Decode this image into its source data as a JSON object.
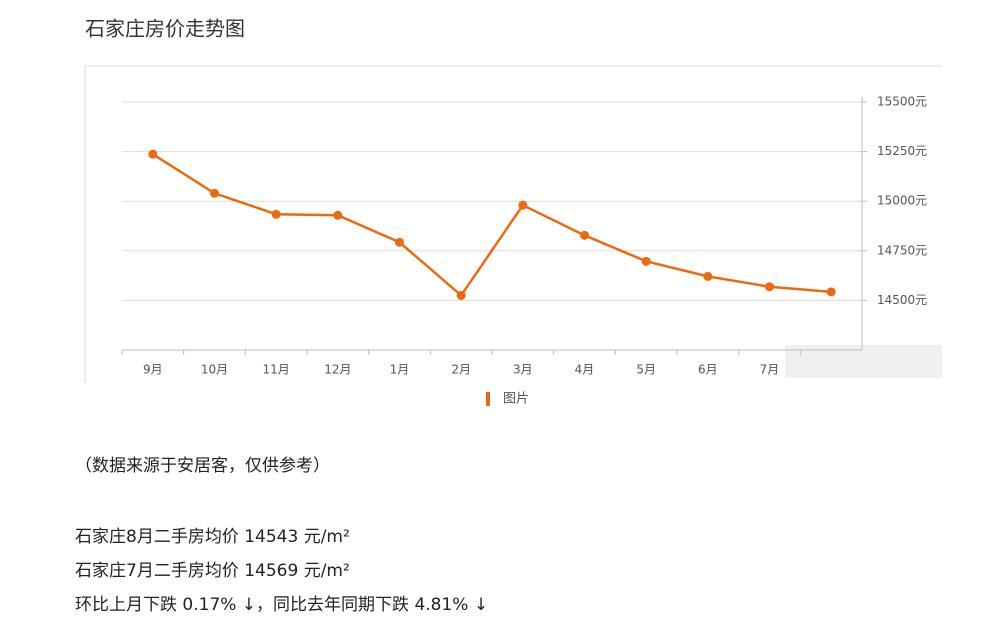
{
  "chart_data": {
    "type": "line",
    "title": "石家庄房价走势图",
    "categories": [
      "9月",
      "10月",
      "11月",
      "12月",
      "1月",
      "2月",
      "3月",
      "4月",
      "5月",
      "6月",
      "7月",
      null
    ],
    "series": [
      {
        "name": "图片",
        "color": "#eb6a10",
        "values": [
          15237,
          15040,
          14934,
          14929,
          14793,
          14525,
          14980,
          14828,
          14697,
          14621,
          14569,
          14543
        ]
      }
    ],
    "ylim": [
      14250,
      15500
    ],
    "yticks": [
      {
        "value": 14500,
        "label": "14500元"
      },
      {
        "value": 14750,
        "label": "14750元"
      },
      {
        "value": 15000,
        "label": "15000元"
      },
      {
        "value": 15250,
        "label": "15250元"
      },
      {
        "value": 15500,
        "label": "15500元"
      }
    ],
    "grid": true,
    "legend": "bottom"
  },
  "source_note": "（数据来源于安居客，仅供参考）",
  "lines": [
    "石家庄8月二手房均价 14543 元/m²",
    "石家庄7月二手房均价 14569 元/m²",
    "环比上月下跌 0.17% ↓，同比去年同期下跌 4.81% ↓"
  ]
}
